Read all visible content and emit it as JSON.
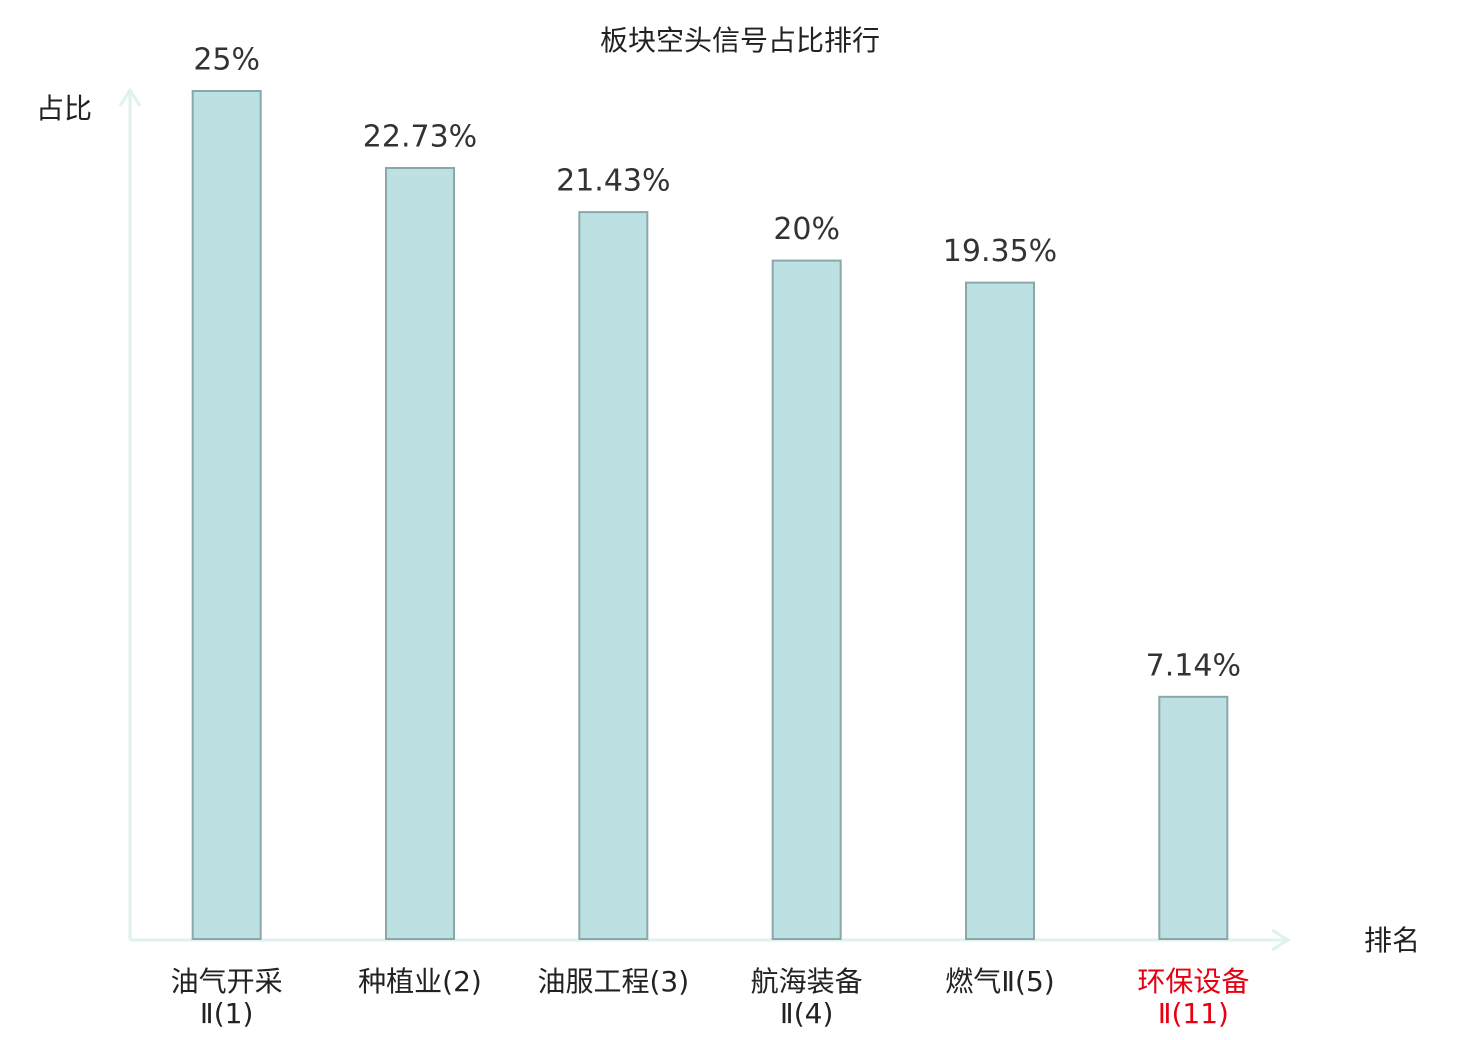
{
  "chart_data": {
    "type": "bar",
    "title": "板块空头信号占比排行",
    "y_label": "占比",
    "x_label": "排名",
    "categories": [
      "油气开采\nⅡ(1)",
      "种植业(2)",
      "油服工程(3)",
      "航海装备\nⅡ(4)",
      "燃气Ⅱ(5)",
      "环保设备\nⅡ(11)"
    ],
    "values": [
      25,
      22.73,
      21.43,
      20,
      19.35,
      7.14
    ],
    "value_labels": [
      "25%",
      "22.73%",
      "21.43%",
      "20%",
      "19.35%",
      "7.14%"
    ],
    "color": "#bde0e2",
    "edge_color": "#8aa8aa",
    "category_label_colors": [
      "#222222",
      "#222222",
      "#222222",
      "#222222",
      "#222222",
      "#e60012"
    ],
    "ylim": [
      0,
      25
    ]
  }
}
